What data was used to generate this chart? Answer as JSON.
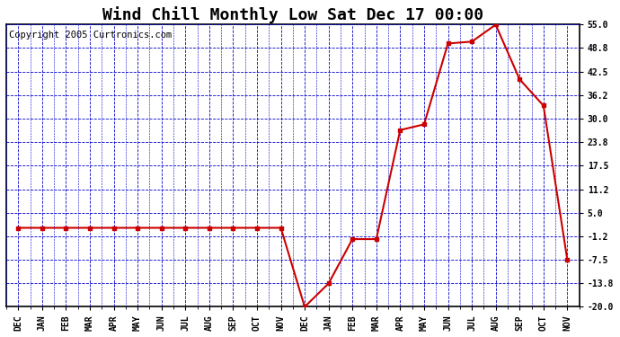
{
  "title": "Wind Chill Monthly Low Sat Dec 17 00:00",
  "copyright": "Copyright 2005 Curtronics.com",
  "x_labels": [
    "DEC",
    "JAN",
    "FEB",
    "MAR",
    "APR",
    "MAY",
    "JUN",
    "JUL",
    "AUG",
    "SEP",
    "OCT",
    "NOV",
    "DEC",
    "JAN",
    "FEB",
    "MAR",
    "APR",
    "MAY",
    "JUN",
    "JUL",
    "AUG",
    "SEP",
    "OCT",
    "NOV"
  ],
  "y_values": [
    1.0,
    1.0,
    1.0,
    1.0,
    1.0,
    1.0,
    1.0,
    1.0,
    1.0,
    1.0,
    1.0,
    1.0,
    -20.0,
    -13.8,
    -2.0,
    -2.0,
    27.0,
    28.5,
    50.0,
    50.5,
    55.0,
    40.5,
    33.5,
    -7.5
  ],
  "ylim": [
    -20.0,
    55.0
  ],
  "yticks": [
    55.0,
    48.8,
    42.5,
    36.2,
    30.0,
    23.8,
    17.5,
    11.2,
    5.0,
    -1.2,
    -7.5,
    -13.8,
    -20.0
  ],
  "line_color": "#cc0000",
  "marker_color": "#cc0000",
  "bg_color": "#ffffff",
  "plot_bg_color": "#ffffff",
  "grid_color": "#0000cc",
  "border_color": "#000000",
  "title_fontsize": 13,
  "copyright_fontsize": 7.5
}
